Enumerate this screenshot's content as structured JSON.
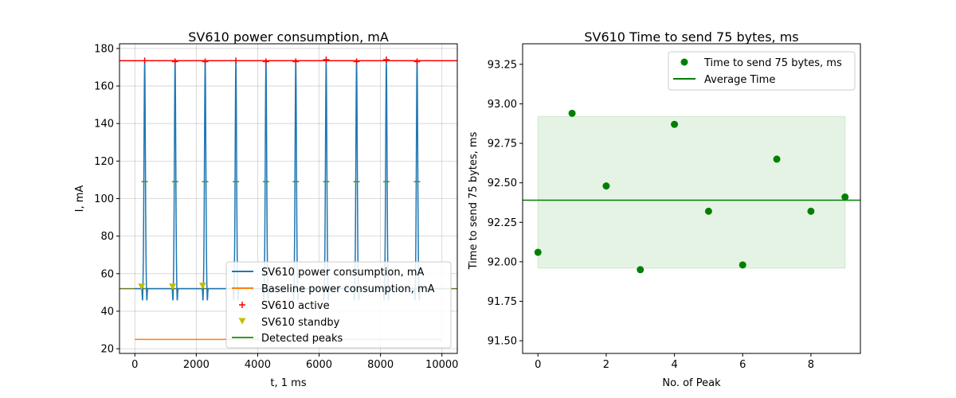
{
  "colors": {
    "power": "#1f77b4",
    "baseline": "#ff7f0e",
    "active": "#ff0000",
    "standby": "#bfbf00",
    "peaks": "#2ca02c",
    "time_points": "#008000",
    "average": "#008000",
    "band": "#2ca02c"
  },
  "chart_data": [
    {
      "type": "line",
      "title": "SV610 power consumption, mA",
      "xlabel": "t, 1 ms",
      "ylabel": "I, mA",
      "xlim": [
        -500,
        10500
      ],
      "ylim": [
        17.5,
        182.5
      ],
      "xticks": [
        0,
        2000,
        4000,
        6000,
        8000,
        10000
      ],
      "yticks": [
        20,
        40,
        60,
        80,
        100,
        120,
        140,
        160,
        180
      ],
      "grid": true,
      "legend_position": "lower-right",
      "legend": [
        "SV610 power consumption, mA",
        "Baseline power consumption, mA",
        "SV610 active",
        "SV610 standby",
        "Detected peaks"
      ],
      "series": [
        {
          "name": "SV610 power consumption, mA",
          "kind": "pulse-train",
          "resting": 52,
          "peak": 173,
          "dip": 45,
          "pulse_centers": [
            320,
            1310,
            2290,
            3290,
            4270,
            5240,
            6230,
            7220,
            8190,
            9190
          ],
          "pulse_width_ms": 80
        },
        {
          "name": "Baseline power consumption, mA",
          "x": [
            0,
            10000
          ],
          "y": [
            25,
            25
          ]
        },
        {
          "name": "SV610 active",
          "marker": "+",
          "x": [
            320,
            1310,
            2290,
            3290,
            4270,
            5240,
            6230,
            7220,
            8190,
            9190
          ],
          "y": [
            173.5,
            173,
            173,
            173.5,
            173,
            173,
            174,
            173,
            174,
            173
          ]
        },
        {
          "name": "SV610 standby",
          "marker": "v",
          "x": [
            220,
            1230,
            2210
          ],
          "y": [
            53,
            53,
            53.5
          ]
        },
        {
          "name": "Detected peaks",
          "kind": "short-dashes",
          "x": [
            320,
            1310,
            2290,
            3290,
            4270,
            5240,
            6230,
            7220,
            8190,
            9190
          ],
          "y": [
            109,
            109,
            109,
            109,
            109,
            109,
            109,
            109,
            109,
            109
          ]
        }
      ],
      "reference_lines": [
        {
          "axis": "y",
          "value": 173.5,
          "series": "SV610 active"
        },
        {
          "axis": "y",
          "value": 52,
          "series": "SV610 power consumption, mA"
        }
      ]
    },
    {
      "type": "scatter",
      "title": "SV610 Time to send 75 bytes, ms",
      "xlabel": "No. of Peak",
      "ylabel": "Time to send 75 bytes, ms",
      "xlim": [
        -0.45,
        9.45
      ],
      "ylim": [
        91.42,
        93.38
      ],
      "xticks": [
        0,
        2,
        4,
        6,
        8
      ],
      "yticks": [
        91.5,
        91.75,
        92.0,
        92.25,
        92.5,
        92.75,
        93.0,
        93.25
      ],
      "ytick_labels": [
        "91.50",
        "91.75",
        "92.00",
        "92.25",
        "92.50",
        "92.75",
        "93.00",
        "93.25"
      ],
      "grid": false,
      "legend_position": "top-right",
      "legend": [
        "Time to send 75 bytes, ms",
        "Average Time"
      ],
      "series": [
        {
          "name": "Time to send 75 bytes, ms",
          "x": [
            0,
            1,
            2,
            3,
            4,
            5,
            6,
            7,
            8,
            9
          ],
          "y": [
            92.06,
            92.94,
            92.48,
            91.95,
            92.87,
            92.32,
            91.98,
            92.65,
            92.32,
            92.41
          ]
        },
        {
          "name": "Average Time",
          "y": 92.39
        }
      ],
      "band": {
        "x": [
          0,
          9
        ],
        "y": [
          91.96,
          92.92
        ]
      }
    }
  ]
}
